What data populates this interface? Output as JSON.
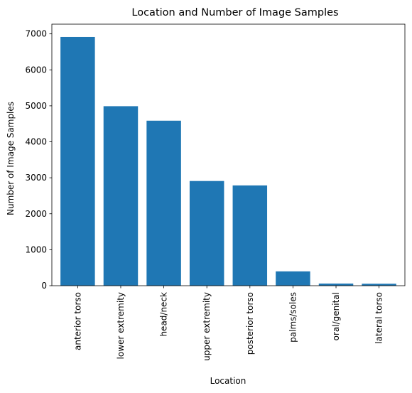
{
  "chart_data": {
    "type": "bar",
    "title": "Location and Number of Image Samples",
    "xlabel": "Location",
    "ylabel": "Number of Image Samples",
    "categories": [
      "anterior torso",
      "lower extremity",
      "head/neck",
      "upper extremity",
      "posterior torso",
      "palms/soles",
      "oral/genital",
      "lateral torso"
    ],
    "values": [
      6915,
      4990,
      4587,
      2910,
      2787,
      398,
      59,
      54
    ],
    "ylim": [
      0,
      7270
    ],
    "yticks": [
      0,
      1000,
      2000,
      3000,
      4000,
      5000,
      6000,
      7000
    ],
    "bar_color": "#1f77b4",
    "grid": false,
    "legend": "none"
  }
}
